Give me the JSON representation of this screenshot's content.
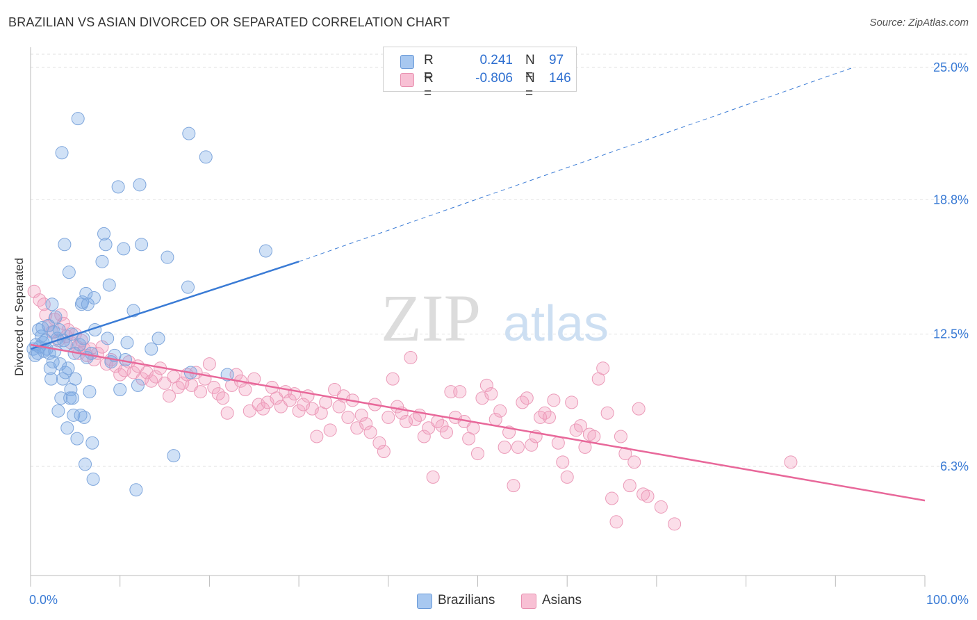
{
  "title": "BRAZILIAN VS ASIAN DIVORCED OR SEPARATED CORRELATION CHART",
  "source": "Source: ZipAtlas.com",
  "legend_stats": [
    {
      "r_label": "R =",
      "r_value": "0.241",
      "n_label": "N =",
      "n_value": "97",
      "color": "#a8c8f0",
      "border": "#6a9ad8"
    },
    {
      "r_label": "R =",
      "r_value": "-0.806",
      "n_label": "N =",
      "n_value": "146",
      "color": "#f8c0d4",
      "border": "#e890b0"
    }
  ],
  "bottom_legend": [
    {
      "label": "Brazilians",
      "color": "#a8c8f0",
      "border": "#6a9ad8"
    },
    {
      "label": "Asians",
      "color": "#f8c0d4",
      "border": "#e890b0"
    }
  ],
  "colors": {
    "blue": "#3a7bd5",
    "blue_fill": "rgba(120,168,228,0.35)",
    "pink": "#e8689a",
    "pink_fill": "rgba(244,160,192,0.35)",
    "tick_text": "#3a7bd5"
  },
  "chart_data": {
    "type": "scatter",
    "title": "BRAZILIAN VS ASIAN DIVORCED OR SEPARATED CORRELATION CHART",
    "xlabel": "",
    "ylabel": "Divorced or Separated",
    "xlim": [
      0,
      100
    ],
    "ylim": [
      0,
      26
    ],
    "x_tick_labels": [
      "0.0%",
      "100.0%"
    ],
    "y_ticks": [
      6.3,
      12.5,
      18.8,
      25.0
    ],
    "y_tick_labels": [
      "6.3%",
      "12.5%",
      "18.8%",
      "25.0%"
    ],
    "grid": true,
    "watermark": "ZIPatlas",
    "series": [
      {
        "name": "Brazilians",
        "trend": {
          "x": [
            0,
            30
          ],
          "y": [
            11.8,
            15.9
          ],
          "extended_to": [
            92,
            25.0
          ]
        },
        "points": [
          [
            0.3,
            11.8
          ],
          [
            0.5,
            11.5
          ],
          [
            0.6,
            12.0
          ],
          [
            0.8,
            11.6
          ],
          [
            0.9,
            12.7
          ],
          [
            1.0,
            11.9
          ],
          [
            1.2,
            12.4
          ],
          [
            1.3,
            12.8
          ],
          [
            1.4,
            12.1
          ],
          [
            1.5,
            11.7
          ],
          [
            1.7,
            12.2
          ],
          [
            1.8,
            11.8
          ],
          [
            2.0,
            12.9
          ],
          [
            2.1,
            11.6
          ],
          [
            2.2,
            10.9
          ],
          [
            2.3,
            10.4
          ],
          [
            2.4,
            13.9
          ],
          [
            2.5,
            11.2
          ],
          [
            2.6,
            12.6
          ],
          [
            2.7,
            11.7
          ],
          [
            2.8,
            13.3
          ],
          [
            3.0,
            12.3
          ],
          [
            3.1,
            8.9
          ],
          [
            3.2,
            12.7
          ],
          [
            3.3,
            11.1
          ],
          [
            3.4,
            9.5
          ],
          [
            3.5,
            21.0
          ],
          [
            3.6,
            10.4
          ],
          [
            3.7,
            12.2
          ],
          [
            3.8,
            16.7
          ],
          [
            3.9,
            10.7
          ],
          [
            4.0,
            12.0
          ],
          [
            4.1,
            8.1
          ],
          [
            4.2,
            10.9
          ],
          [
            4.3,
            15.4
          ],
          [
            4.4,
            9.5
          ],
          [
            4.5,
            9.9
          ],
          [
            4.6,
            12.5
          ],
          [
            4.7,
            9.5
          ],
          [
            4.8,
            8.7
          ],
          [
            4.9,
            11.6
          ],
          [
            5.0,
            10.4
          ],
          [
            5.2,
            7.6
          ],
          [
            5.3,
            22.6
          ],
          [
            5.5,
            12.0
          ],
          [
            5.6,
            8.7
          ],
          [
            5.7,
            13.9
          ],
          [
            5.8,
            14.0
          ],
          [
            5.9,
            12.3
          ],
          [
            6.0,
            8.6
          ],
          [
            6.1,
            6.4
          ],
          [
            6.2,
            14.4
          ],
          [
            6.3,
            11.4
          ],
          [
            6.4,
            13.9
          ],
          [
            6.6,
            9.8
          ],
          [
            6.8,
            11.6
          ],
          [
            6.9,
            7.4
          ],
          [
            7.0,
            5.7
          ],
          [
            7.1,
            14.2
          ],
          [
            7.2,
            12.7
          ],
          [
            8.0,
            15.9
          ],
          [
            8.2,
            17.2
          ],
          [
            8.4,
            16.7
          ],
          [
            8.6,
            12.3
          ],
          [
            8.8,
            14.8
          ],
          [
            9.0,
            11.2
          ],
          [
            9.4,
            11.5
          ],
          [
            9.8,
            19.4
          ],
          [
            10.0,
            9.9
          ],
          [
            10.4,
            16.5
          ],
          [
            10.6,
            11.3
          ],
          [
            10.8,
            12.1
          ],
          [
            11.5,
            13.6
          ],
          [
            11.8,
            5.2
          ],
          [
            12.0,
            10.1
          ],
          [
            12.2,
            19.5
          ],
          [
            12.4,
            16.7
          ],
          [
            13.5,
            11.8
          ],
          [
            14.3,
            12.3
          ],
          [
            15.3,
            16.1
          ],
          [
            16.0,
            6.8
          ],
          [
            17.6,
            14.7
          ],
          [
            17.7,
            21.9
          ],
          [
            17.9,
            10.7
          ],
          [
            19.6,
            20.8
          ],
          [
            22.0,
            10.6
          ],
          [
            26.3,
            16.4
          ]
        ]
      },
      {
        "name": "Asians",
        "trend": {
          "x": [
            0,
            100
          ],
          "y": [
            12.0,
            4.7
          ]
        },
        "points": [
          [
            0.4,
            14.5
          ],
          [
            1.0,
            14.1
          ],
          [
            1.5,
            13.9
          ],
          [
            1.7,
            13.4
          ],
          [
            2.0,
            12.9
          ],
          [
            2.4,
            12.6
          ],
          [
            2.7,
            13.2
          ],
          [
            3.1,
            12.2
          ],
          [
            3.4,
            13.4
          ],
          [
            3.7,
            13.0
          ],
          [
            4.0,
            12.4
          ],
          [
            4.2,
            12.7
          ],
          [
            4.5,
            12.1
          ],
          [
            5.0,
            12.5
          ],
          [
            5.2,
            11.9
          ],
          [
            5.4,
            11.6
          ],
          [
            5.7,
            12.2
          ],
          [
            6.0,
            11.8
          ],
          [
            6.3,
            11.5
          ],
          [
            6.7,
            11.8
          ],
          [
            7.1,
            11.3
          ],
          [
            7.5,
            11.6
          ],
          [
            8.0,
            11.9
          ],
          [
            8.5,
            11.1
          ],
          [
            9.0,
            11.3
          ],
          [
            9.5,
            11.0
          ],
          [
            10.0,
            10.6
          ],
          [
            10.5,
            10.8
          ],
          [
            11.0,
            11.2
          ],
          [
            11.5,
            10.7
          ],
          [
            12.0,
            11.0
          ],
          [
            12.5,
            10.4
          ],
          [
            13.0,
            10.7
          ],
          [
            13.5,
            10.3
          ],
          [
            14.0,
            10.5
          ],
          [
            14.5,
            10.9
          ],
          [
            15.0,
            10.2
          ],
          [
            15.5,
            9.6
          ],
          [
            16.0,
            10.5
          ],
          [
            16.5,
            10.0
          ],
          [
            17.0,
            10.2
          ],
          [
            17.5,
            10.6
          ],
          [
            18.0,
            10.1
          ],
          [
            18.5,
            10.7
          ],
          [
            19.0,
            9.8
          ],
          [
            19.5,
            10.4
          ],
          [
            20.0,
            11.1
          ],
          [
            20.5,
            10.0
          ],
          [
            21.0,
            9.7
          ],
          [
            21.5,
            9.5
          ],
          [
            22.0,
            8.8
          ],
          [
            22.5,
            10.1
          ],
          [
            23.0,
            10.6
          ],
          [
            23.5,
            10.3
          ],
          [
            24.0,
            9.9
          ],
          [
            24.5,
            8.9
          ],
          [
            25.0,
            10.4
          ],
          [
            25.5,
            9.2
          ],
          [
            26.0,
            9.0
          ],
          [
            26.5,
            9.3
          ],
          [
            27.0,
            10.0
          ],
          [
            27.5,
            9.5
          ],
          [
            28.0,
            9.1
          ],
          [
            28.5,
            9.8
          ],
          [
            29.0,
            9.4
          ],
          [
            29.5,
            9.7
          ],
          [
            30.0,
            8.9
          ],
          [
            30.5,
            9.2
          ],
          [
            31.0,
            9.6
          ],
          [
            31.5,
            9.0
          ],
          [
            32.0,
            7.7
          ],
          [
            32.5,
            8.8
          ],
          [
            33.0,
            9.3
          ],
          [
            33.5,
            8.0
          ],
          [
            34.0,
            9.9
          ],
          [
            34.5,
            9.1
          ],
          [
            35.0,
            9.6
          ],
          [
            35.5,
            8.6
          ],
          [
            36.0,
            9.4
          ],
          [
            36.5,
            8.1
          ],
          [
            37.0,
            8.7
          ],
          [
            37.5,
            8.3
          ],
          [
            38.0,
            7.9
          ],
          [
            38.5,
            9.2
          ],
          [
            39.0,
            7.4
          ],
          [
            39.5,
            7.0
          ],
          [
            40.0,
            8.6
          ],
          [
            40.5,
            10.4
          ],
          [
            41.0,
            9.1
          ],
          [
            41.5,
            8.8
          ],
          [
            42.0,
            8.4
          ],
          [
            42.5,
            11.4
          ],
          [
            43.0,
            8.5
          ],
          [
            43.5,
            8.7
          ],
          [
            44.0,
            7.7
          ],
          [
            44.5,
            8.1
          ],
          [
            45.0,
            5.8
          ],
          [
            45.5,
            8.4
          ],
          [
            46.0,
            8.2
          ],
          [
            46.5,
            7.9
          ],
          [
            47.0,
            9.8
          ],
          [
            47.5,
            8.6
          ],
          [
            48.0,
            9.8
          ],
          [
            48.5,
            8.4
          ],
          [
            49.0,
            7.6
          ],
          [
            49.5,
            8.1
          ],
          [
            50.0,
            6.9
          ],
          [
            50.5,
            9.5
          ],
          [
            51.0,
            10.1
          ],
          [
            51.5,
            9.7
          ],
          [
            52.0,
            8.5
          ],
          [
            52.5,
            8.9
          ],
          [
            53.0,
            7.2
          ],
          [
            53.5,
            7.9
          ],
          [
            54.0,
            5.4
          ],
          [
            54.5,
            7.2
          ],
          [
            55.0,
            9.3
          ],
          [
            55.5,
            9.5
          ],
          [
            56.0,
            7.3
          ],
          [
            56.5,
            7.7
          ],
          [
            57.0,
            8.6
          ],
          [
            57.5,
            8.8
          ],
          [
            58.0,
            8.6
          ],
          [
            58.5,
            9.4
          ],
          [
            59.0,
            7.4
          ],
          [
            59.5,
            6.5
          ],
          [
            60.0,
            5.8
          ],
          [
            60.5,
            9.3
          ],
          [
            61.0,
            8.0
          ],
          [
            61.5,
            8.2
          ],
          [
            62.0,
            7.2
          ],
          [
            62.5,
            7.8
          ],
          [
            63.0,
            7.7
          ],
          [
            63.5,
            10.4
          ],
          [
            64.0,
            10.9
          ],
          [
            64.5,
            8.8
          ],
          [
            65.0,
            4.8
          ],
          [
            65.5,
            3.7
          ],
          [
            66.0,
            7.7
          ],
          [
            66.5,
            6.9
          ],
          [
            67.0,
            5.4
          ],
          [
            67.5,
            6.5
          ],
          [
            68.0,
            9.0
          ],
          [
            68.5,
            5.0
          ],
          [
            69.0,
            4.9
          ],
          [
            70.5,
            4.4
          ],
          [
            72.0,
            3.6
          ],
          [
            85.0,
            6.5
          ]
        ]
      }
    ]
  }
}
